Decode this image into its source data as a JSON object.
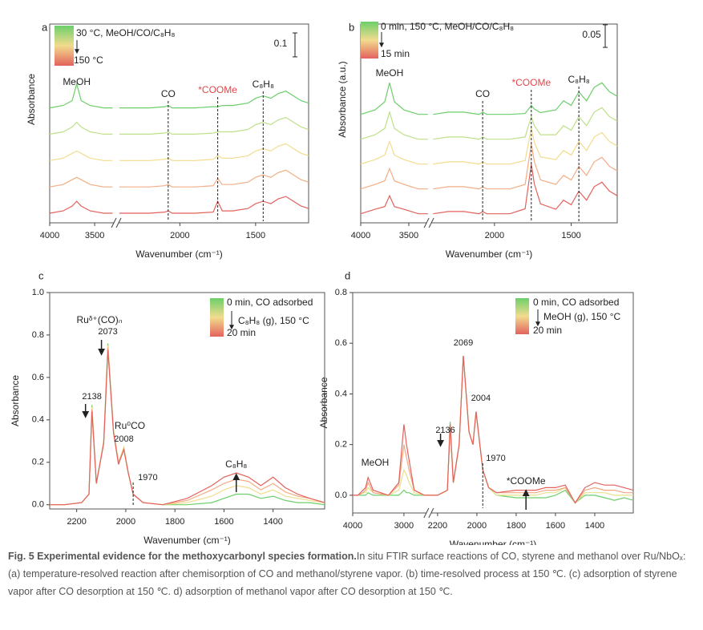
{
  "chart_data": [
    {
      "panel": "a",
      "type": "line",
      "xlabel": "Wavenumber (cm⁻¹)",
      "ylabel": "Absorbance",
      "x": [
        4000,
        3850,
        3750,
        3700,
        3650,
        3550,
        3400,
        3300,
        2400,
        2200,
        2100,
        2077,
        2050,
        1900,
        1780,
        1750,
        1720,
        1650,
        1550,
        1500,
        1450,
        1400,
        1350,
        1300,
        1250,
        1200,
        1150
      ],
      "xlim": [
        4000,
        1150
      ],
      "xbreak": [
        3260,
        2420
      ],
      "xticks": [
        4000,
        3500,
        2000,
        1500
      ],
      "ylim": [
        0,
        0.83
      ],
      "scalebar": 0.1,
      "legend": [
        "30 °C, MeOH/CO/C₈H₈",
        "150 °C"
      ],
      "annotations": [
        {
          "text": "MeOH",
          "x": 3700
        },
        {
          "text": "CO",
          "x": 2077
        },
        {
          "text": "*COOMe",
          "x": 1750,
          "color": "#e0474c"
        },
        {
          "text": "C₈H₈",
          "x": 1450
        }
      ],
      "series": [
        {
          "color": "#6ccf6a",
          "values": [
            0.48,
            0.49,
            0.51,
            0.58,
            0.51,
            0.49,
            0.48,
            0.48,
            0.48,
            0.48,
            0.485,
            0.49,
            0.48,
            0.48,
            0.485,
            0.485,
            0.49,
            0.49,
            0.5,
            0.52,
            0.53,
            0.52,
            0.54,
            0.55,
            0.53,
            0.51,
            0.5
          ]
        },
        {
          "color": "#bfe08a",
          "values": [
            0.37,
            0.38,
            0.4,
            0.42,
            0.4,
            0.38,
            0.37,
            0.37,
            0.37,
            0.37,
            0.375,
            0.38,
            0.37,
            0.37,
            0.375,
            0.38,
            0.38,
            0.38,
            0.39,
            0.41,
            0.42,
            0.41,
            0.43,
            0.44,
            0.42,
            0.4,
            0.39
          ]
        },
        {
          "color": "#f2dc8e",
          "values": [
            0.26,
            0.27,
            0.29,
            0.3,
            0.29,
            0.27,
            0.26,
            0.26,
            0.26,
            0.26,
            0.265,
            0.27,
            0.26,
            0.26,
            0.265,
            0.28,
            0.27,
            0.27,
            0.28,
            0.3,
            0.31,
            0.3,
            0.32,
            0.33,
            0.31,
            0.29,
            0.28
          ]
        },
        {
          "color": "#f3ad86",
          "values": [
            0.15,
            0.16,
            0.18,
            0.19,
            0.18,
            0.16,
            0.15,
            0.15,
            0.15,
            0.15,
            0.155,
            0.16,
            0.15,
            0.15,
            0.155,
            0.185,
            0.16,
            0.16,
            0.17,
            0.19,
            0.2,
            0.19,
            0.21,
            0.22,
            0.2,
            0.18,
            0.17
          ]
        },
        {
          "color": "#e3625c",
          "values": [
            0.04,
            0.05,
            0.07,
            0.09,
            0.07,
            0.05,
            0.04,
            0.04,
            0.04,
            0.04,
            0.045,
            0.05,
            0.04,
            0.04,
            0.045,
            0.09,
            0.05,
            0.05,
            0.06,
            0.08,
            0.09,
            0.08,
            0.1,
            0.11,
            0.09,
            0.07,
            0.06
          ]
        }
      ]
    },
    {
      "panel": "b",
      "type": "line",
      "xlabel": "Wavenumber (cm⁻¹)",
      "ylabel": "Absorbance (a.u.)",
      "x": [
        4000,
        3850,
        3750,
        3700,
        3650,
        3550,
        3400,
        3300,
        2400,
        2300,
        2200,
        2100,
        2077,
        2050,
        1900,
        1800,
        1760,
        1740,
        1700,
        1600,
        1550,
        1500,
        1450,
        1400,
        1350,
        1300,
        1250,
        1200
      ],
      "xlim": [
        4000,
        1200
      ],
      "xbreak": [
        3290,
        2427
      ],
      "xticks": [
        4000,
        3500,
        2000,
        1500
      ],
      "ylim": [
        0,
        0.44
      ],
      "scalebar": 0.05,
      "legend": [
        "0 min, 150 °C, MeOH/CO/C₈H₈",
        "15 min"
      ],
      "annotations": [
        {
          "text": "MeOH",
          "x": 3700
        },
        {
          "text": "CO",
          "x": 2077
        },
        {
          "text": "*COOMe",
          "x": 1760,
          "color": "#e0474c"
        },
        {
          "text": "C₈H₈",
          "x": 1450
        }
      ],
      "series": [
        {
          "color": "#6ccf6a",
          "values": [
            0.24,
            0.25,
            0.268,
            0.31,
            0.268,
            0.25,
            0.24,
            0.24,
            0.24,
            0.245,
            0.245,
            0.24,
            0.245,
            0.24,
            0.24,
            0.242,
            0.26,
            0.252,
            0.244,
            0.25,
            0.27,
            0.26,
            0.29,
            0.27,
            0.3,
            0.31,
            0.29,
            0.28
          ]
        },
        {
          "color": "#bfe08a",
          "values": [
            0.185,
            0.195,
            0.209,
            0.245,
            0.209,
            0.195,
            0.185,
            0.185,
            0.185,
            0.19,
            0.19,
            0.185,
            0.19,
            0.185,
            0.185,
            0.19,
            0.235,
            0.215,
            0.195,
            0.195,
            0.215,
            0.205,
            0.235,
            0.215,
            0.245,
            0.255,
            0.235,
            0.225
          ]
        },
        {
          "color": "#f2dc8e",
          "values": [
            0.13,
            0.14,
            0.15,
            0.18,
            0.15,
            0.14,
            0.13,
            0.13,
            0.13,
            0.135,
            0.135,
            0.13,
            0.135,
            0.13,
            0.13,
            0.138,
            0.21,
            0.178,
            0.146,
            0.14,
            0.16,
            0.15,
            0.18,
            0.16,
            0.19,
            0.2,
            0.18,
            0.17
          ]
        },
        {
          "color": "#f3ad86",
          "values": [
            0.075,
            0.085,
            0.093,
            0.12,
            0.093,
            0.085,
            0.075,
            0.075,
            0.075,
            0.08,
            0.08,
            0.075,
            0.08,
            0.075,
            0.075,
            0.085,
            0.175,
            0.135,
            0.095,
            0.085,
            0.105,
            0.095,
            0.125,
            0.105,
            0.135,
            0.145,
            0.125,
            0.115
          ]
        },
        {
          "color": "#e3625c",
          "values": [
            0.02,
            0.03,
            0.036,
            0.06,
            0.036,
            0.03,
            0.02,
            0.02,
            0.02,
            0.025,
            0.025,
            0.02,
            0.025,
            0.02,
            0.02,
            0.031,
            0.13,
            0.086,
            0.042,
            0.03,
            0.05,
            0.04,
            0.07,
            0.05,
            0.08,
            0.09,
            0.07,
            0.06
          ]
        }
      ]
    },
    {
      "panel": "c",
      "type": "line",
      "xlabel": "Wavenumber (cm⁻¹)",
      "ylabel": "Absorbance",
      "x": [
        2310,
        2250,
        2180,
        2150,
        2138,
        2120,
        2090,
        2073,
        2050,
        2030,
        2008,
        1990,
        1970,
        1930,
        1850,
        1750,
        1650,
        1600,
        1550,
        1500,
        1450,
        1400,
        1350,
        1300,
        1250,
        1190
      ],
      "xlim": [
        2310,
        1190
      ],
      "xticks": [
        2200,
        2000,
        1800,
        1600,
        1400
      ],
      "ylim": [
        -0.02,
        1.0
      ],
      "yticks": [
        {
          "value": 0,
          "label": "0.0"
        },
        0.2,
        0.4,
        0.6,
        0.8,
        {
          "value": 1,
          "label": "1.0"
        }
      ],
      "legend": [
        "0 min, CO adsorbed",
        "C₈H₈ (g), 150 °C",
        "20 min"
      ],
      "peaks": [
        2138,
        2073,
        2008,
        1970
      ],
      "annotations": [
        {
          "text": "Ruᵟ⁺(CO)ₙ"
        },
        {
          "text": "Ru⁰CO"
        },
        {
          "text": "C₈H₈",
          "x": 1550
        }
      ],
      "series": [
        {
          "color": "#6ccf6a",
          "values": [
            0,
            0,
            0.01,
            0.05,
            0.47,
            0.1,
            0.3,
            0.76,
            0.35,
            0.2,
            0.27,
            0.15,
            0.05,
            0.01,
            0,
            0,
            0.01,
            0.03,
            0.05,
            0.05,
            0.03,
            0.04,
            0.02,
            0.01,
            0.01,
            0
          ]
        },
        {
          "color": "#f2dc8e",
          "values": [
            0,
            0,
            0.01,
            0.05,
            0.46,
            0.1,
            0.3,
            0.75,
            0.35,
            0.2,
            0.27,
            0.15,
            0.05,
            0.01,
            0,
            0.01,
            0.04,
            0.07,
            0.09,
            0.08,
            0.05,
            0.07,
            0.04,
            0.03,
            0.02,
            0.01
          ]
        },
        {
          "color": "#f3ad86",
          "values": [
            0,
            0,
            0.01,
            0.05,
            0.45,
            0.1,
            0.29,
            0.74,
            0.34,
            0.2,
            0.26,
            0.15,
            0.05,
            0.01,
            0,
            0.02,
            0.07,
            0.1,
            0.12,
            0.11,
            0.07,
            0.1,
            0.06,
            0.04,
            0.03,
            0.01
          ]
        },
        {
          "color": "#e3625c",
          "values": [
            0,
            0,
            0.01,
            0.05,
            0.44,
            0.1,
            0.29,
            0.73,
            0.34,
            0.19,
            0.26,
            0.15,
            0.05,
            0.01,
            0,
            0.03,
            0.09,
            0.13,
            0.15,
            0.13,
            0.09,
            0.13,
            0.08,
            0.05,
            0.03,
            0.01
          ]
        }
      ]
    },
    {
      "panel": "d",
      "type": "line",
      "xlabel": "Wavenumber (cm⁻¹)",
      "ylabel": "Absorbance",
      "x": [
        4000,
        3900,
        3800,
        3750,
        3700,
        3600,
        3300,
        3100,
        3000,
        2950,
        2900,
        2800,
        2600,
        2516,
        2245,
        2200,
        2150,
        2136,
        2120,
        2090,
        2069,
        2040,
        2020,
        2004,
        1985,
        1970,
        1940,
        1900,
        1800,
        1760,
        1700,
        1650,
        1600,
        1550,
        1500,
        1450,
        1400,
        1350,
        1300,
        1250,
        1204
      ],
      "xlim": [
        4000,
        1204
      ],
      "xbreak": [
        2516,
        2245
      ],
      "xticks": [
        4000,
        3000,
        2200,
        2000,
        1800,
        1600,
        1400
      ],
      "ylim": [
        -0.07,
        0.8
      ],
      "yticks": [
        {
          "value": 0,
          "label": "0.0"
        },
        0.2,
        0.4,
        0.6,
        0.8
      ],
      "legend": [
        "0 min, CO adsorbed",
        "MeOH (g), 150 °C",
        "20 min"
      ],
      "peaks": [
        2136,
        2069,
        2004,
        1970
      ],
      "annotations": [
        {
          "text": "MeOH"
        },
        {
          "text": "*COOMe",
          "x": 1750
        }
      ],
      "series": [
        {
          "color": "#6ccf6a",
          "values": [
            0,
            0,
            0,
            0,
            0.01,
            0,
            0,
            0,
            0.02,
            0.01,
            0.01,
            0,
            0,
            0,
            0,
            0,
            0.02,
            0.29,
            0.05,
            0.2,
            0.55,
            0.25,
            0.2,
            0.33,
            0.2,
            0.1,
            0.03,
            0,
            -0.01,
            -0.01,
            -0.01,
            -0.01,
            0.0,
            0.02,
            -0.03,
            0.0,
            0.0,
            -0.01,
            -0.02,
            -0.01,
            -0.02
          ]
        },
        {
          "color": "#e9e08c",
          "values": [
            0,
            0,
            0.01,
            0.01,
            0.03,
            0.01,
            0,
            0.02,
            0.1,
            0.08,
            0.05,
            0.01,
            0,
            0,
            0,
            0,
            0.02,
            0.28,
            0.05,
            0.2,
            0.55,
            0.25,
            0.2,
            0.33,
            0.2,
            0.1,
            0.03,
            0,
            0,
            0,
            0,
            0.01,
            0.01,
            0.03,
            -0.03,
            0.01,
            0.01,
            0.01,
            0,
            0,
            0
          ]
        },
        {
          "color": "#f2a77f",
          "values": [
            0,
            0,
            0.01,
            0.02,
            0.05,
            0.01,
            0,
            0.04,
            0.2,
            0.15,
            0.1,
            0.02,
            0,
            0,
            0,
            0,
            0.02,
            0.28,
            0.05,
            0.2,
            0.55,
            0.25,
            0.2,
            0.33,
            0.2,
            0.1,
            0.03,
            0.01,
            0.01,
            0.01,
            0.01,
            0.02,
            0.02,
            0.03,
            -0.03,
            0.02,
            0.03,
            0.02,
            0.02,
            0.01,
            0.01
          ]
        },
        {
          "color": "#e3625c",
          "values": [
            0,
            0,
            0.02,
            0.03,
            0.07,
            0.02,
            0,
            0.05,
            0.28,
            0.2,
            0.14,
            0.02,
            0,
            0,
            0,
            0,
            0.02,
            0.28,
            0.05,
            0.2,
            0.55,
            0.25,
            0.2,
            0.33,
            0.2,
            0.1,
            0.03,
            0.01,
            0.02,
            0.02,
            0.02,
            0.03,
            0.03,
            0.04,
            -0.03,
            0.03,
            0.05,
            0.04,
            0.04,
            0.03,
            0.02
          ]
        }
      ]
    }
  ],
  "caption": {
    "title": "Fig. 5 Experimental evidence for the methoxycarbonyl species formation.",
    "text": "In situ FTIR surface reactions of CO, styrene and methanol over Ru/NbOₓ: (a) temperature-resolved reaction after chemisorption of CO and methanol/styrene vapor. (b) time-resolved process at 150 ℃. (c) adsorption of styrene vapor after CO desorption at 150 ℃. d) adsorption of methanol vapor after CO desorption at 150 ℃."
  }
}
